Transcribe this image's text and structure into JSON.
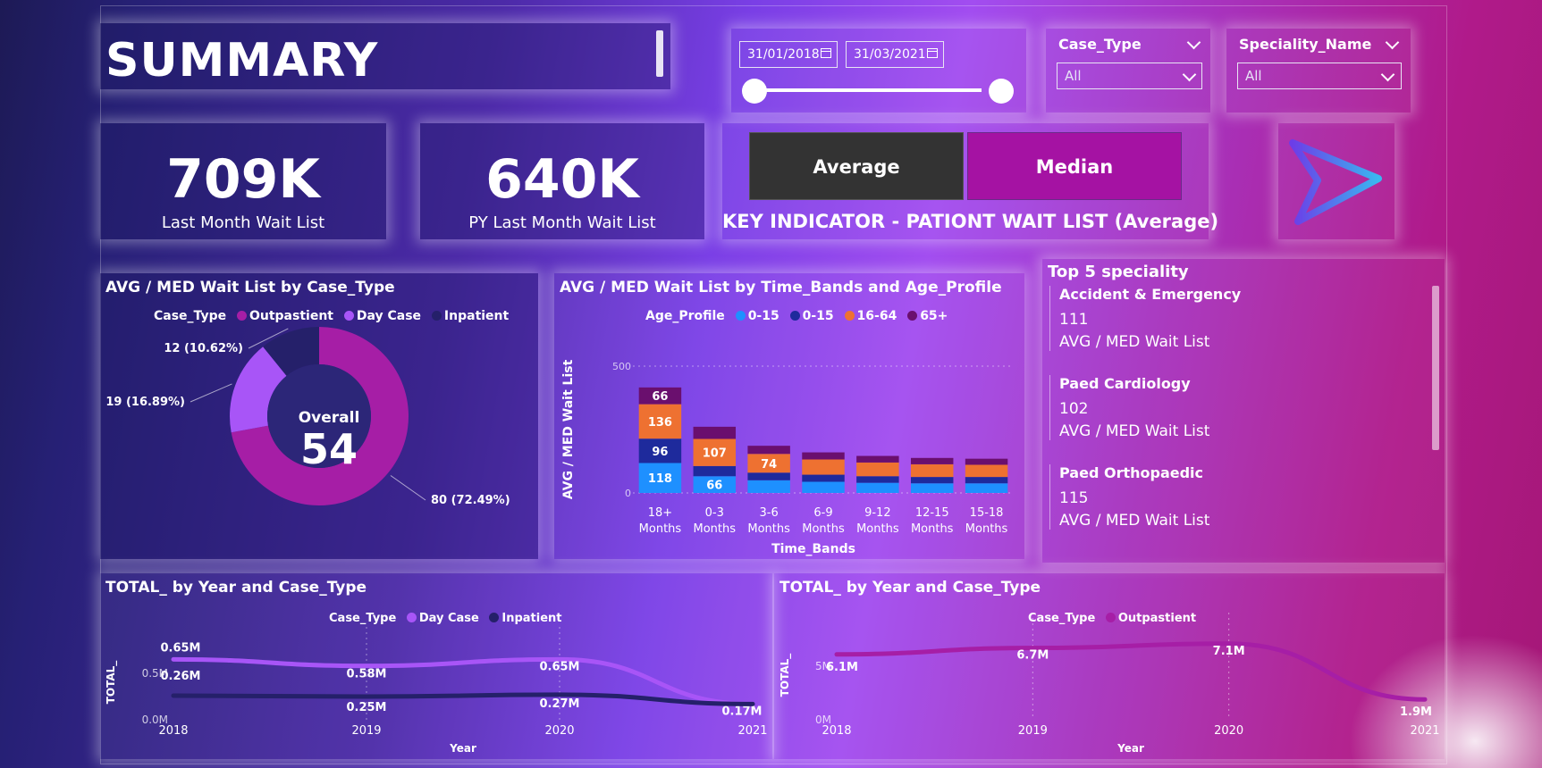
{
  "page": {
    "title": "SUMMARY"
  },
  "date_filter": {
    "start": "31/01/2018",
    "end": "31/03/2021"
  },
  "slicers": [
    {
      "title": "Case_Type",
      "value": "All"
    },
    {
      "title": "Speciality_Name",
      "value": "All"
    }
  ],
  "kpis": [
    {
      "value": "709K",
      "label": "Last Month Wait List"
    },
    {
      "value": "640K",
      "label": "PY Last Month Wait List"
    }
  ],
  "toggle": {
    "average_label": "Average",
    "median_label": "Median",
    "caption": "KEY INDICATOR - PATIONT WAIT LIST (Average)"
  },
  "nav": {
    "icon": "play-arrow-icon"
  },
  "donut_panel": {
    "title": "AVG / MED Wait List by Case_Type",
    "legend_title": "Case_Type",
    "center_label": "Overall",
    "center_value": "54"
  },
  "bar_panel": {
    "title": "AVG / MED Wait List by Time_Bands and Age_Profile",
    "legend_title": "Age_Profile"
  },
  "top5": {
    "title": "Top 5 speciality",
    "items": [
      {
        "name": "Accident & Emergency",
        "value": "111",
        "label": "AVG / MED Wait List"
      },
      {
        "name": "Paed Cardiology",
        "value": "102",
        "label": "AVG / MED Wait List"
      },
      {
        "name": "Paed Orthopaedic",
        "value": "115",
        "label": "AVG / MED Wait List"
      }
    ]
  },
  "line_left_panel": {
    "title": "TOTAL_ by Year and Case_Type",
    "legend_title": "Case_Type"
  },
  "line_right_panel": {
    "title": "TOTAL_ by Year and Case_Type",
    "legend_title": "Case_Type"
  },
  "colors": {
    "outpatient": "#a61ea6",
    "daycase": "#a855f7",
    "inpatient": "#25206a",
    "age1": "#1e90ff",
    "age2": "#1e2a9c",
    "age3": "#ee7131",
    "age4": "#6a0f6e"
  },
  "chart_data": [
    {
      "type": "pie",
      "title": "AVG / MED Wait List by Case_Type",
      "categories": [
        "Outpastient",
        "Day Case",
        "Inpatient"
      ],
      "values": [
        80,
        19,
        12
      ],
      "labels": [
        "80 (72.49%)",
        "19 (16.89%)",
        "12 (10.62%)"
      ],
      "colors": [
        "#a61ea6",
        "#a855f7",
        "#25206a"
      ]
    },
    {
      "type": "bar",
      "stacked": true,
      "title": "AVG / MED Wait List by Time_Bands and Age_Profile",
      "xlabel": "Time_Bands",
      "ylabel": "AVG / MED Wait List",
      "ylim": [
        0,
        500
      ],
      "yticks": [
        0,
        500
      ],
      "ytick_labels": [
        "0",
        "500"
      ],
      "categories": [
        "18+ Months",
        "0-3 Months",
        "3-6 Months",
        "6-9 Months",
        "9-12 Months",
        "12-15 Months",
        "15-18 Months"
      ],
      "series": [
        {
          "name": "0-15",
          "color": "#1e90ff",
          "values": [
            118,
            66,
            50,
            44,
            40,
            38,
            38
          ],
          "labels": [
            "118",
            "66",
            "",
            "",
            "",
            "",
            ""
          ]
        },
        {
          "name": "0-15",
          "color": "#1e2a9c",
          "values": [
            96,
            40,
            30,
            28,
            26,
            25,
            25
          ],
          "labels": [
            "96",
            "",
            "",
            "",
            "",
            "",
            ""
          ]
        },
        {
          "name": "16-64",
          "color": "#ee7131",
          "values": [
            136,
            107,
            74,
            60,
            54,
            50,
            48
          ],
          "labels": [
            "136",
            "107",
            "74",
            "",
            "",
            "",
            ""
          ]
        },
        {
          "name": "65+",
          "color": "#6a0f6e",
          "values": [
            66,
            48,
            32,
            28,
            26,
            25,
            24
          ],
          "labels": [
            "66",
            "",
            "",
            "",
            "",
            "",
            ""
          ]
        }
      ]
    },
    {
      "type": "line",
      "title": "TOTAL_ by Year and Case_Type",
      "xlabel": "Year",
      "ylabel": "TOTAL_",
      "x": [
        2018,
        2019,
        2020,
        2021
      ],
      "ylim": [
        0,
        1000000
      ],
      "yticks": [
        0,
        500000
      ],
      "ytick_labels": [
        "0.0M",
        "0.5M"
      ],
      "series": [
        {
          "name": "Day Case",
          "color": "#a855f7",
          "values": [
            650000,
            580000,
            650000,
            170000
          ],
          "labels": [
            "0.65M",
            "0.58M",
            "0.65M",
            "0.17M"
          ]
        },
        {
          "name": "Inpatient",
          "color": "#25206a",
          "values": [
            260000,
            250000,
            270000,
            170000
          ],
          "labels": [
            "0.26M",
            "0.25M",
            "0.27M",
            ""
          ]
        }
      ]
    },
    {
      "type": "line",
      "title": "TOTAL_ by Year and Case_Type",
      "xlabel": "Year",
      "ylabel": "TOTAL_",
      "x": [
        2018,
        2019,
        2020,
        2021
      ],
      "ylim": [
        0,
        10000000
      ],
      "yticks": [
        0,
        5000000
      ],
      "ytick_labels": [
        "0M",
        "5M"
      ],
      "series": [
        {
          "name": "Outpastient",
          "color": "#a61ea6",
          "values": [
            6100000,
            6700000,
            7100000,
            1900000
          ],
          "labels": [
            "6.1M",
            "6.7M",
            "7.1M",
            "1.9M"
          ]
        }
      ]
    }
  ]
}
